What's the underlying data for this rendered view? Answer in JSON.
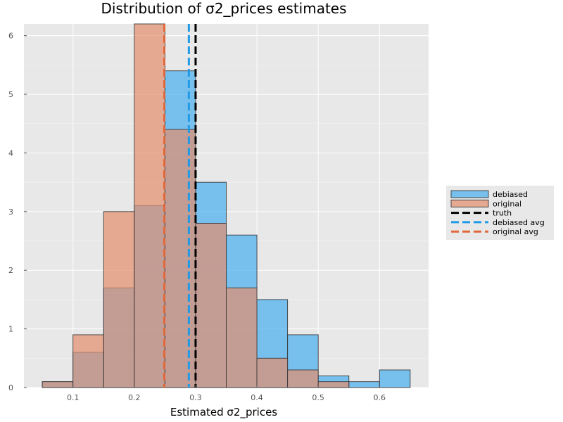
{
  "chart_data": {
    "type": "bar",
    "title": "Distribution of σ2_prices estimates",
    "xlabel": "Estimated σ2_prices",
    "ylabel": "",
    "xlim": [
      0.02,
      0.68
    ],
    "ylim": [
      0,
      6.2
    ],
    "grid": true,
    "background": "#e8e8e8",
    "legend_position": "right",
    "bin_edges": [
      0.05,
      0.1,
      0.15,
      0.2,
      0.25,
      0.3,
      0.35,
      0.4,
      0.45,
      0.5,
      0.55,
      0.6,
      0.65
    ],
    "x_ticks": [
      0.1,
      0.2,
      0.3,
      0.4,
      0.5,
      0.6
    ],
    "x_tick_labels": [
      "0.1",
      "0.2",
      "0.3",
      "0.4",
      "0.5",
      "0.6"
    ],
    "y_ticks": [
      0,
      1,
      2,
      3,
      4,
      5,
      6
    ],
    "y_tick_labels": [
      "0",
      "1",
      "2",
      "3",
      "4",
      "5",
      "6"
    ],
    "series": [
      {
        "name": "debiased",
        "color": "#47aff0",
        "values": [
          0.1,
          0.6,
          1.7,
          3.1,
          5.4,
          3.5,
          2.6,
          1.5,
          0.9,
          0.2,
          0.1,
          0.3
        ]
      },
      {
        "name": "original",
        "color": "#e48f6e",
        "values": [
          0.1,
          0.9,
          3.0,
          6.2,
          4.4,
          2.8,
          1.7,
          0.5,
          0.3,
          0.1,
          0.0,
          0.0
        ]
      }
    ],
    "vlines": [
      {
        "name": "truth",
        "x": 0.3,
        "color": "#000000"
      },
      {
        "name": "debiased avg",
        "x": 0.289,
        "color": "#1f9ae6"
      },
      {
        "name": "original avg",
        "x": 0.249,
        "color": "#e0693c"
      }
    ]
  }
}
